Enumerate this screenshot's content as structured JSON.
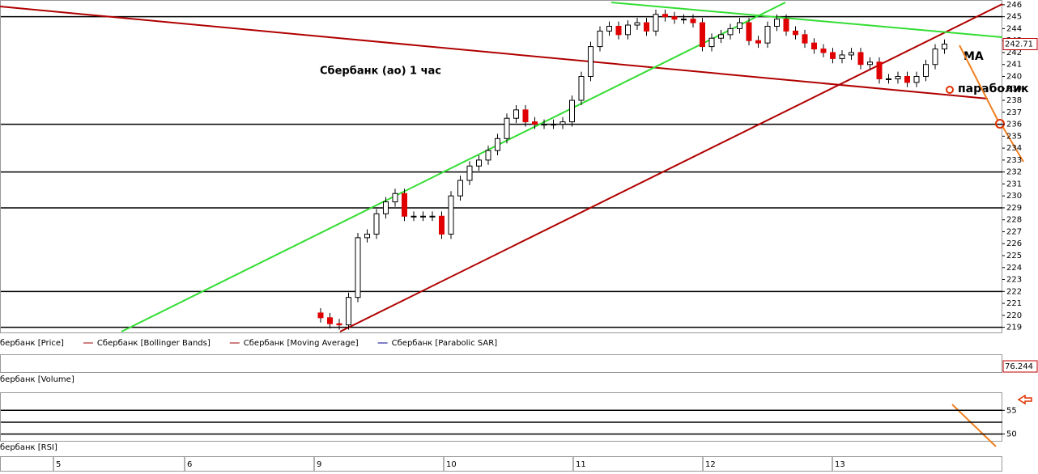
{
  "chart_data": {
    "type": "candlestick",
    "title": "Сбербанк (ао)   1 час",
    "annotations": [
      "МА",
      "параболик"
    ],
    "up_color": "#ffffff",
    "down_color": "#e00000",
    "open": [
      220.2,
      219.8,
      219.3,
      219.2,
      221.5,
      226.5,
      226.8,
      228.5,
      229.5,
      230.2,
      228.3,
      228.3,
      228.3,
      228.3,
      226.8,
      230,
      231.3,
      232.5,
      233,
      233.8,
      234.8,
      236.5,
      237.2,
      236.2,
      236,
      236,
      236,
      236.2,
      238,
      240,
      242.5,
      243.8,
      244.2,
      243.5,
      244.3,
      244.5,
      243.8,
      245.2,
      245,
      244.8,
      244.8,
      244.5,
      242.5,
      243.2,
      243.5,
      244,
      244.5,
      243,
      242.8,
      244.2,
      244.8,
      243.8,
      243.5,
      242.8,
      242.3,
      242,
      241.5,
      241.8,
      242,
      241,
      241.2,
      239.8,
      239.8,
      240,
      239.5,
      240,
      241,
      242.3
    ],
    "high": [
      220.6,
      220.2,
      219.7,
      221.9,
      226.9,
      227.2,
      228.9,
      229.9,
      230.6,
      230.6,
      228.7,
      228.7,
      228.7,
      228.7,
      230.4,
      231.7,
      232.9,
      233.4,
      234.2,
      235.2,
      236.9,
      237.6,
      237.6,
      236.6,
      236.4,
      236.4,
      236.6,
      238.4,
      240.4,
      242.9,
      244.2,
      244.6,
      244.6,
      244.7,
      244.9,
      244.9,
      245.6,
      245.6,
      245.4,
      245.2,
      245.2,
      244.9,
      243.6,
      243.9,
      244.4,
      244.9,
      244.9,
      243.4,
      244.6,
      245.2,
      245.2,
      244.2,
      243.9,
      243.2,
      242.7,
      242.4,
      242.2,
      242.4,
      242.4,
      241.6,
      241.6,
      240.2,
      240.4,
      240.4,
      240.4,
      241.4,
      242.7,
      243.1
    ],
    "low": [
      219.4,
      218.9,
      218.8,
      218.8,
      221.1,
      226.1,
      226.4,
      228.1,
      229.1,
      227.9,
      227.9,
      227.9,
      227.9,
      226.4,
      226.4,
      229.6,
      230.9,
      232.1,
      232.6,
      233.4,
      234.4,
      236.1,
      235.8,
      235.6,
      235.6,
      235.6,
      235.6,
      235.8,
      237.6,
      239.6,
      242.1,
      243.4,
      243.1,
      243.1,
      243.9,
      243.4,
      243.4,
      244.6,
      244.4,
      244.4,
      244.1,
      242.1,
      242.1,
      242.8,
      243.1,
      243.6,
      242.6,
      242.4,
      242.4,
      243.8,
      243.4,
      243.1,
      242.4,
      241.9,
      241.6,
      241.1,
      241.1,
      241.4,
      240.6,
      240.6,
      239.4,
      239.4,
      239.4,
      239.1,
      239.1,
      239.6,
      240.6,
      241.9
    ],
    "close": [
      219.8,
      219.3,
      219.2,
      221.5,
      226.5,
      226.8,
      228.5,
      229.5,
      230.2,
      228.3,
      228.3,
      228.3,
      228.3,
      226.8,
      230,
      231.3,
      232.5,
      233,
      233.8,
      234.8,
      236.5,
      237.2,
      236.2,
      236,
      236,
      236,
      236.2,
      238,
      240,
      242.5,
      243.8,
      244.2,
      243.5,
      244.3,
      244.5,
      243.8,
      245.2,
      245,
      244.8,
      244.8,
      244.5,
      242.5,
      243.2,
      243.5,
      244,
      244.5,
      243,
      242.8,
      244.2,
      244.8,
      243.8,
      243.5,
      242.8,
      242.3,
      242,
      241.5,
      241.8,
      242,
      241,
      241.2,
      239.8,
      239.8,
      240,
      239.5,
      240,
      241,
      242.3,
      242.71
    ],
    "ylim": [
      218.5,
      246.4
    ],
    "yticks": [
      219,
      220,
      221,
      222,
      223,
      224,
      225,
      226,
      227,
      228,
      229,
      230,
      231,
      232,
      233,
      234,
      235,
      236,
      237,
      238,
      239,
      240,
      241,
      242,
      243,
      244,
      245,
      246
    ],
    "levels": [
      245,
      236,
      232,
      229,
      222,
      219
    ],
    "legend": [
      {
        "name": "бербанк [Price]",
        "color": "#000000"
      },
      {
        "name": "Сбербанк [Bollinger Bands]",
        "color": "#a00000"
      },
      {
        "name": "Сбербанк [Moving Average]",
        "color": "#a00000"
      },
      {
        "name": "Сбербанк [Parabolic SAR]",
        "color": "#000090"
      }
    ],
    "volume": {
      "name": "бербанк [Volume]",
      "axis_label": "76.244"
    },
    "rsi": {
      "name": "бербанк [RSI]",
      "ylim": [
        48.4,
        58.8
      ],
      "yticks": [
        55,
        50
      ],
      "levels": [
        55,
        52.5,
        50
      ]
    },
    "date_axis": [
      "5",
      "6",
      "9",
      "10",
      "11",
      "12",
      "13"
    ]
  }
}
